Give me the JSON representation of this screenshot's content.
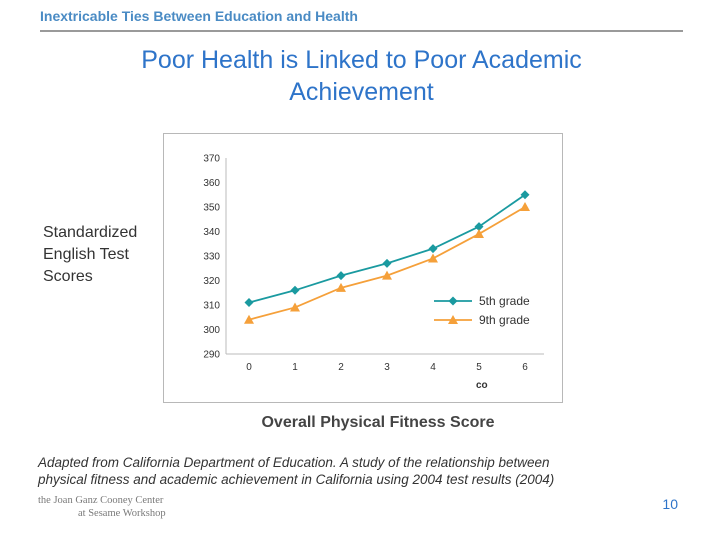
{
  "header": {
    "text": "Inextricable Ties Between Education and Health"
  },
  "title": {
    "line1": "Poor Health is Linked to Poor Academic",
    "line2": "Achievement"
  },
  "side_label": {
    "line1": "Standardized",
    "line2": "English Test",
    "line3": "Scores"
  },
  "x_caption": "Overall Physical Fitness Score",
  "source": {
    "line1": "Adapted from California Department of Education.  A study of the relationship between",
    "line2": "physical fitness and academic achievement in California using 2004 test results (2004)"
  },
  "logo": {
    "line1": "the Joan Ganz Cooney Center",
    "line2": "at Sesame Workshop"
  },
  "page_number": "10",
  "chart_data": {
    "type": "line",
    "x": [
      0,
      1,
      2,
      3,
      4,
      5,
      6
    ],
    "ylim": [
      290,
      370
    ],
    "yticks": [
      290,
      300,
      310,
      320,
      330,
      340,
      350,
      360,
      370
    ],
    "grid": false,
    "legend_position": "bottom-right",
    "axis_fragment": "co",
    "series": [
      {
        "name": "5th grade",
        "values": [
          311,
          316,
          322,
          327,
          333,
          342,
          355
        ],
        "color": "#1a9aa0",
        "marker": "diamond"
      },
      {
        "name": "9th grade",
        "values": [
          304,
          309,
          317,
          322,
          329,
          339,
          350
        ],
        "color": "#f5a03a",
        "marker": "triangle"
      }
    ]
  }
}
